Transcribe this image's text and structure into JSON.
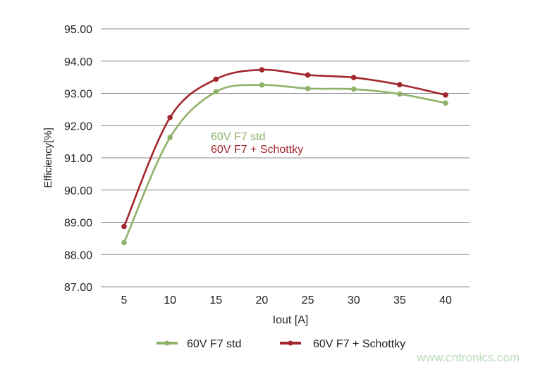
{
  "chart_data": {
    "type": "line",
    "title": "",
    "xlabel": "Iout [A]",
    "ylabel": "Efficiency[%]",
    "x": [
      5,
      10,
      15,
      20,
      25,
      30,
      35,
      40
    ],
    "xlim": [
      5,
      40
    ],
    "ylim": [
      87,
      95
    ],
    "yticks": [
      "87.00",
      "88.00",
      "89.00",
      "90.00",
      "91.00",
      "92.00",
      "93.00",
      "94.00",
      "95.00"
    ],
    "xticks": [
      "5",
      "10",
      "15",
      "20",
      "25",
      "30",
      "35",
      "40"
    ],
    "grid": "horizontal",
    "legend_placement": "bottom",
    "series": [
      {
        "name": "60V F7 std",
        "color": "#8fb26a",
        "values": [
          88.37,
          91.63,
          93.05,
          93.26,
          93.15,
          93.13,
          92.98,
          92.7
        ]
      },
      {
        "name": "60V F7 + Schottky",
        "color": "#a3262d",
        "values": [
          88.87,
          92.25,
          93.44,
          93.73,
          93.57,
          93.49,
          93.27,
          92.95
        ]
      }
    ],
    "annotations": [
      "60V F7 std",
      "60V F7 + Schottky"
    ]
  },
  "watermark": "www.cntronics.com"
}
